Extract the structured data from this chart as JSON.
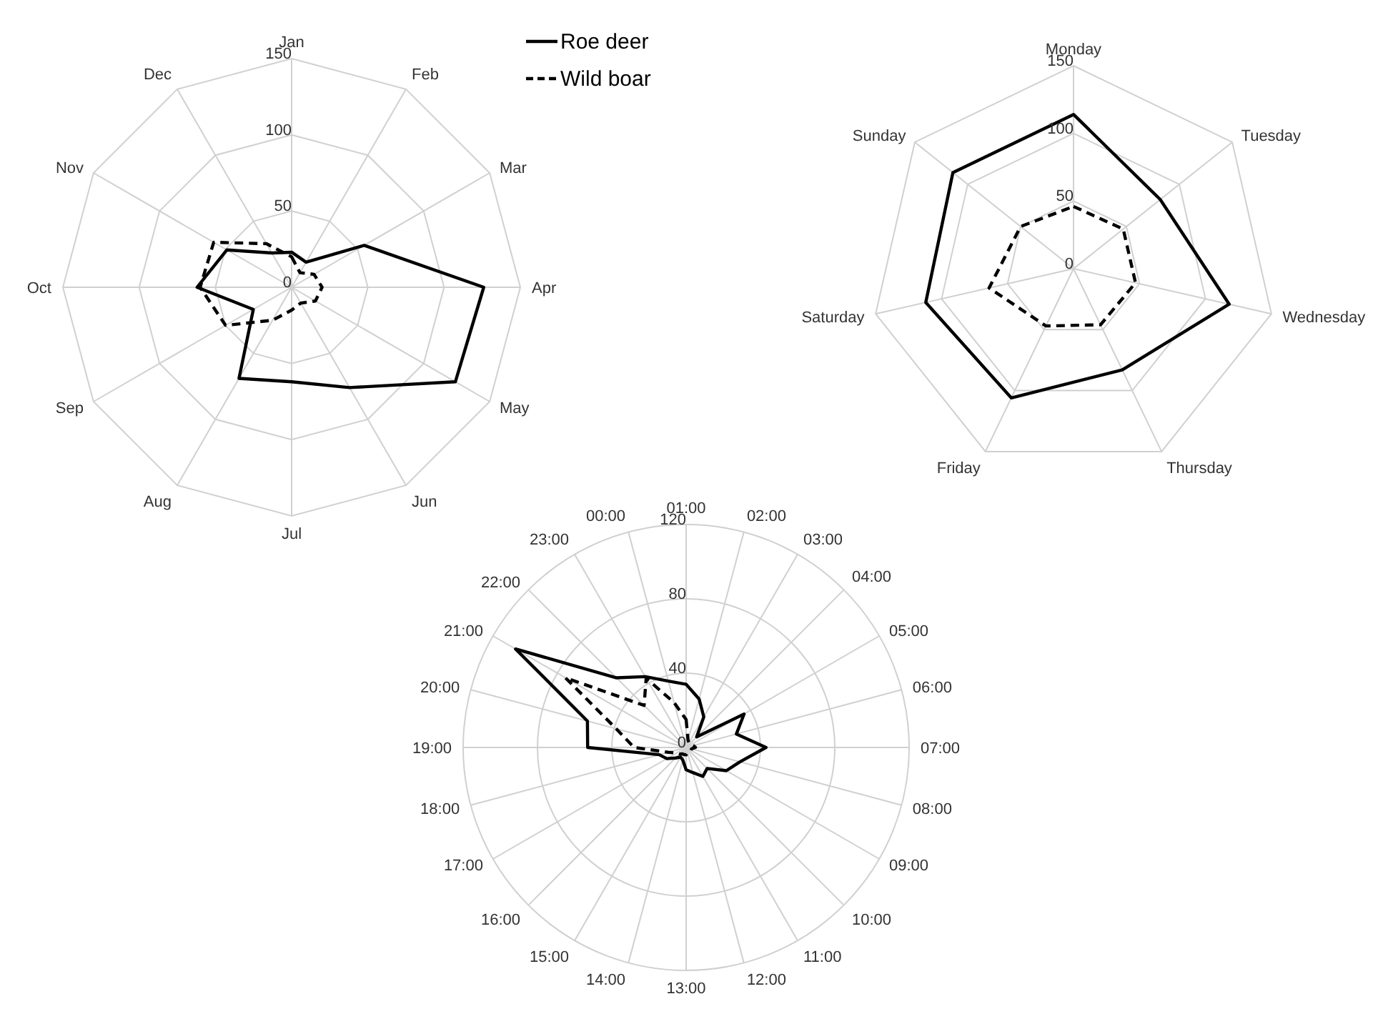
{
  "chart_data": [
    {
      "type": "radar",
      "categories": [
        "Jan",
        "Feb",
        "Mar",
        "Apr",
        "May",
        "Jun",
        "Jul",
        "Aug",
        "Sep",
        "Oct",
        "Nov",
        "Dec"
      ],
      "ylim": [
        0,
        150
      ],
      "yticks": [
        0,
        50,
        100,
        150
      ],
      "grid": true,
      "legend": "top right",
      "marker": "none",
      "series": [
        {
          "name": "Roe deer",
          "color": "#000000",
          "line_style": "solid",
          "values": [
            23,
            19,
            55,
            126,
            124,
            76,
            62,
            69,
            29,
            62,
            49,
            26
          ]
        },
        {
          "name": "Wild boar",
          "color": "#000000",
          "line_style": "dashed",
          "values": [
            20,
            11,
            17,
            20,
            18,
            12,
            15,
            25,
            50,
            60,
            59,
            33
          ]
        }
      ]
    },
    {
      "type": "radar",
      "categories": [
        "Monday",
        "Tuesday",
        "Wednesday",
        "Thursday",
        "Friday",
        "Saturday",
        "Sunday"
      ],
      "ylim": [
        0,
        150
      ],
      "yticks": [
        0,
        50,
        100,
        150
      ],
      "grid": true,
      "marker": "none",
      "series": [
        {
          "color": "#000000",
          "line_style": "solid",
          "values": [
            114,
            82,
            118,
            83,
            106,
            112,
            114
          ]
        },
        {
          "color": "#000000",
          "line_style": "dashed",
          "values": [
            46,
            47,
            47,
            46,
            47,
            64,
            50
          ]
        }
      ]
    },
    {
      "type": "radar",
      "categories": [
        "01:00",
        "02:00",
        "03:00",
        "04:00",
        "05:00",
        "06:00",
        "07:00",
        "08:00",
        "09:00",
        "10:00",
        "11:00",
        "12:00",
        "13:00",
        "14:00",
        "15:00",
        "16:00",
        "17:00",
        "18:00",
        "19:00",
        "20:00",
        "21:00",
        "22:00",
        "23:00",
        "00:00"
      ],
      "ylim": [
        0,
        120
      ],
      "yticks": [
        0,
        40,
        80,
        120
      ],
      "grid": true,
      "marker": "none",
      "series": [
        {
          "color": "#000000",
          "line_style": "solid",
          "values": [
            34,
            27,
            19,
            8,
            36,
            28,
            43,
            30,
            25,
            16,
            18,
            14,
            12,
            7,
            6,
            8,
            12,
            15,
            53,
            55,
            106,
            53,
            44,
            37
          ]
        },
        {
          "color": "#000000",
          "line_style": "dashed",
          "values": [
            15,
            4,
            3,
            3,
            3,
            4,
            5,
            3,
            3,
            3,
            3,
            3,
            4,
            4,
            4,
            5,
            6,
            10,
            28,
            39,
            75,
            32,
            43,
            25
          ]
        }
      ]
    }
  ]
}
